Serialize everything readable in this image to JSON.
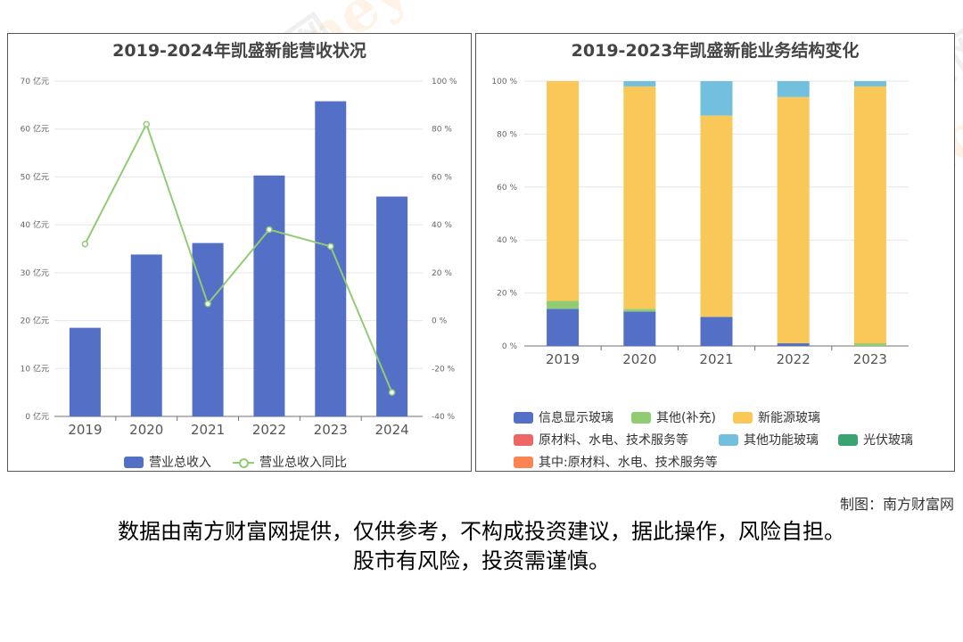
{
  "credit": "制图：南方财富网",
  "disclaimer": {
    "line1": "数据由南方财富网提供，仅供参考，不构成投资建议，据此操作，风险自担。",
    "line2": "股市有风险，投资需谨慎。"
  },
  "watermark": {
    "cn": "南方财富网",
    "en": "southmoney.com"
  },
  "chart_data": [
    {
      "type": "bar",
      "title": "2019-2024年凯盛新能营收状况",
      "categories": [
        "2019",
        "2020",
        "2021",
        "2022",
        "2023",
        "2024"
      ],
      "series": [
        {
          "name": "营业总收入",
          "type": "bar",
          "axis": "left",
          "color": "#5470c6",
          "values": [
            18.5,
            33.8,
            36.2,
            50.3,
            65.8,
            45.9
          ]
        },
        {
          "name": "营业总收入同比",
          "type": "line",
          "axis": "right",
          "color": "#91cc75",
          "values": [
            32,
            82,
            7,
            38,
            31,
            -30
          ]
        }
      ],
      "y_left": {
        "min": 0,
        "max": 70,
        "step": 10,
        "unit": "亿元"
      },
      "y_right": {
        "min": -40,
        "max": 100,
        "step": 20,
        "unit": "%"
      },
      "legend_position": "bottom",
      "grid": true
    },
    {
      "type": "bar",
      "stacked": true,
      "title": "2019-2023年凯盛新能业务结构变化",
      "categories": [
        "2019",
        "2020",
        "2021",
        "2022",
        "2023"
      ],
      "series": [
        {
          "name": "信息显示玻璃",
          "color": "#5470c6",
          "values": [
            14,
            13,
            11,
            1,
            0
          ]
        },
        {
          "name": "其他(补充)",
          "color": "#91cc75",
          "values": [
            3,
            1,
            0,
            0,
            1
          ]
        },
        {
          "name": "新能源玻璃",
          "color": "#fac858",
          "values": [
            83,
            84,
            76,
            93,
            97
          ]
        },
        {
          "name": "原材料、水电、技术服务等",
          "color": "#ee6666",
          "values": [
            0,
            0,
            0,
            0,
            0
          ]
        },
        {
          "name": "其他功能玻璃",
          "color": "#73c0de",
          "values": [
            0,
            2,
            13,
            6,
            2
          ]
        },
        {
          "name": "光伏玻璃",
          "color": "#3ba272",
          "values": [
            0,
            0,
            0,
            0,
            0
          ]
        },
        {
          "name": "其中:原材料、水电、技术服务等",
          "color": "#fc8452",
          "values": [
            0,
            0,
            0,
            0,
            0
          ]
        }
      ],
      "y": {
        "min": 0,
        "max": 100,
        "step": 20,
        "unit": "%"
      },
      "legend_position": "bottom",
      "grid": true
    }
  ]
}
